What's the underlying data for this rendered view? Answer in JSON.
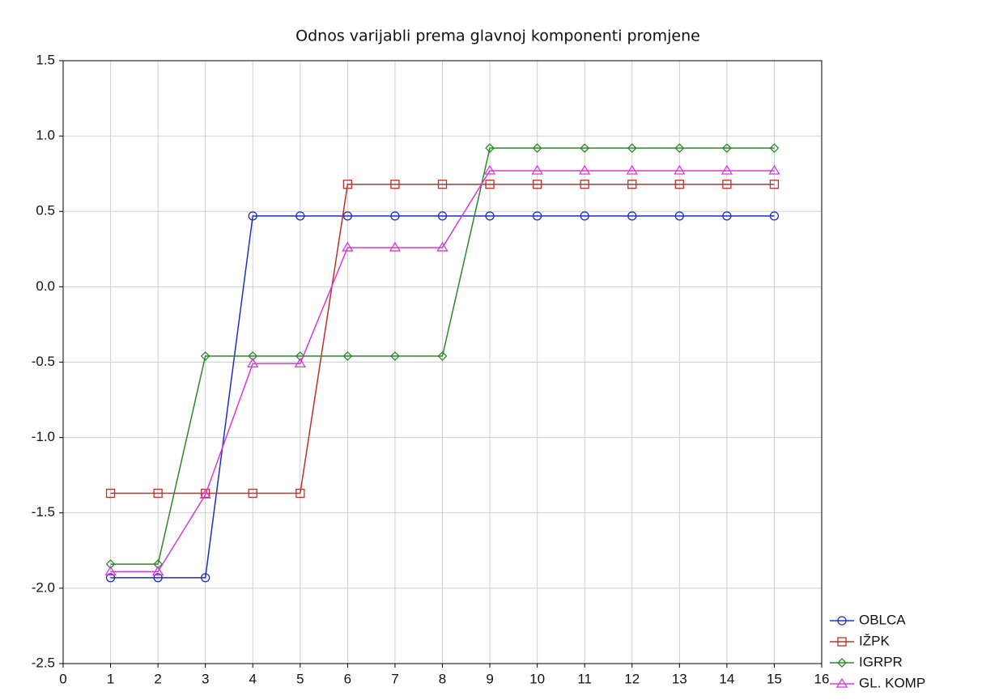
{
  "chart_data": {
    "type": "line",
    "title": "Odnos varijabli prema glavnoj komponenti promjene",
    "x": [
      1,
      2,
      3,
      4,
      5,
      6,
      7,
      8,
      9,
      10,
      11,
      12,
      13,
      14,
      15
    ],
    "series": [
      {
        "name": "OBLCA",
        "color": "#1f2fbf",
        "marker": "circle",
        "values": [
          -1.93,
          -1.93,
          -1.93,
          0.47,
          0.47,
          0.47,
          0.47,
          0.47,
          0.47,
          0.47,
          0.47,
          0.47,
          0.47,
          0.47,
          0.47
        ]
      },
      {
        "name": "IŽPK",
        "color": "#c0302a",
        "marker": "square",
        "values": [
          -1.37,
          -1.37,
          -1.37,
          -1.37,
          -1.37,
          0.68,
          0.68,
          0.68,
          0.68,
          0.68,
          0.68,
          0.68,
          0.68,
          0.68,
          0.68
        ]
      },
      {
        "name": "IGRPR",
        "color": "#2a8a2a",
        "marker": "diamond",
        "values": [
          -1.84,
          -1.84,
          -0.46,
          -0.46,
          -0.46,
          -0.46,
          -0.46,
          -0.46,
          0.92,
          0.92,
          0.92,
          0.92,
          0.92,
          0.92,
          0.92
        ]
      },
      {
        "name": "GL. KOMP",
        "color": "#d838d8",
        "marker": "triangle",
        "values": [
          -1.89,
          -1.89,
          -1.38,
          -0.51,
          -0.51,
          0.26,
          0.26,
          0.26,
          0.77,
          0.77,
          0.77,
          0.77,
          0.77,
          0.77,
          0.77
        ]
      }
    ],
    "xlim": [
      0,
      16
    ],
    "xticks": [
      0,
      1,
      2,
      3,
      4,
      5,
      6,
      7,
      8,
      9,
      10,
      11,
      12,
      13,
      14,
      15,
      16
    ],
    "ylim": [
      -2.5,
      1.5
    ],
    "yticks": [
      -2.5,
      {
        "value": -2,
        "label": "-2.0"
      },
      -1.5,
      {
        "value": -1,
        "label": "-1.0"
      },
      -0.5,
      {
        "value": 0,
        "label": "0.0"
      },
      0.5,
      {
        "value": 1,
        "label": "1.0"
      },
      1.5
    ],
    "grid": true,
    "legend": "lower right"
  }
}
